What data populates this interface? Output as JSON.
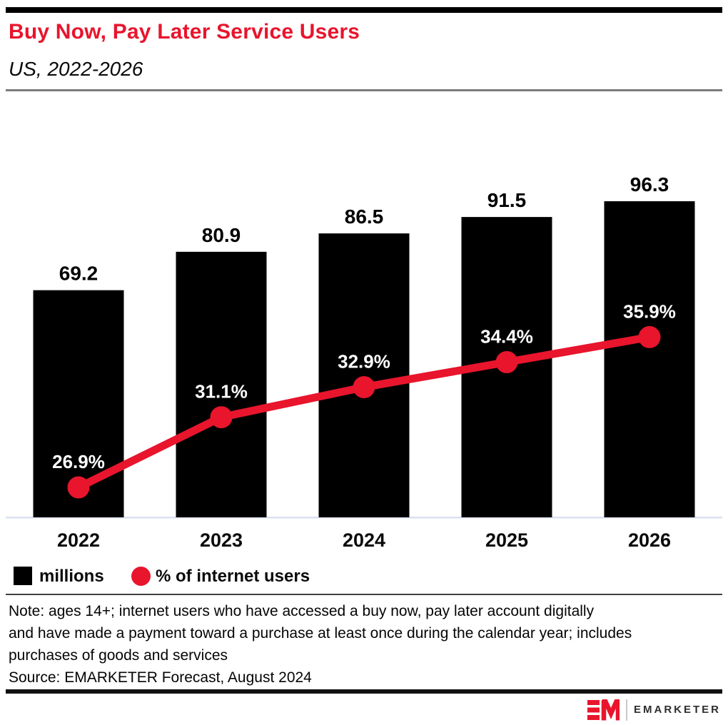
{
  "header": {
    "title": "Buy Now, Pay Later Service Users",
    "subtitle": "US, 2022-2026"
  },
  "chart_data": {
    "type": "bar",
    "subtype": "bar+line combo",
    "title": "Buy Now, Pay Later Service Users",
    "subtitle": "US, 2022-2026",
    "categories": [
      "2022",
      "2023",
      "2024",
      "2025",
      "2026"
    ],
    "series": [
      {
        "name": "millions",
        "type": "bar",
        "color": "#000000",
        "values": [
          69.2,
          80.9,
          86.5,
          91.5,
          96.3
        ],
        "labels": [
          "69.2",
          "80.9",
          "86.5",
          "91.5",
          "96.3"
        ]
      },
      {
        "name": "% of internet users",
        "type": "line",
        "color": "#e8152d",
        "values": [
          26.9,
          31.1,
          32.9,
          34.4,
          35.9
        ],
        "labels": [
          "26.9%",
          "31.1%",
          "32.9%",
          "34.4%",
          "35.9%"
        ]
      }
    ],
    "xlabel": "",
    "ylabel": "",
    "axes_hidden": true,
    "grid": false,
    "value_labels_shown": true,
    "legend_position": "bottom-left"
  },
  "legend": {
    "items": [
      {
        "label": "millions",
        "swatch": "square",
        "color": "#000000"
      },
      {
        "label": "% of internet users",
        "swatch": "circle",
        "color": "#e8152d"
      }
    ]
  },
  "footer": {
    "note_lines": [
      "Note: ages 14+; internet users who have accessed a buy now, pay later account digitally",
      "and have made a payment toward a purchase at least once during the calendar year; includes",
      "purchases of goods and services"
    ],
    "source": "Source: EMARKETER Forecast, August 2024"
  },
  "branding": {
    "logo_monogram": "EM",
    "logo_text": "EMARKETER"
  },
  "colors": {
    "accent_red": "#e8152d",
    "bar_black": "#000000",
    "baseline_line": "#dce1f0",
    "header_rule": "#7c7c7c",
    "legend_rule": "#404040",
    "bottom_rule": "#111111"
  }
}
